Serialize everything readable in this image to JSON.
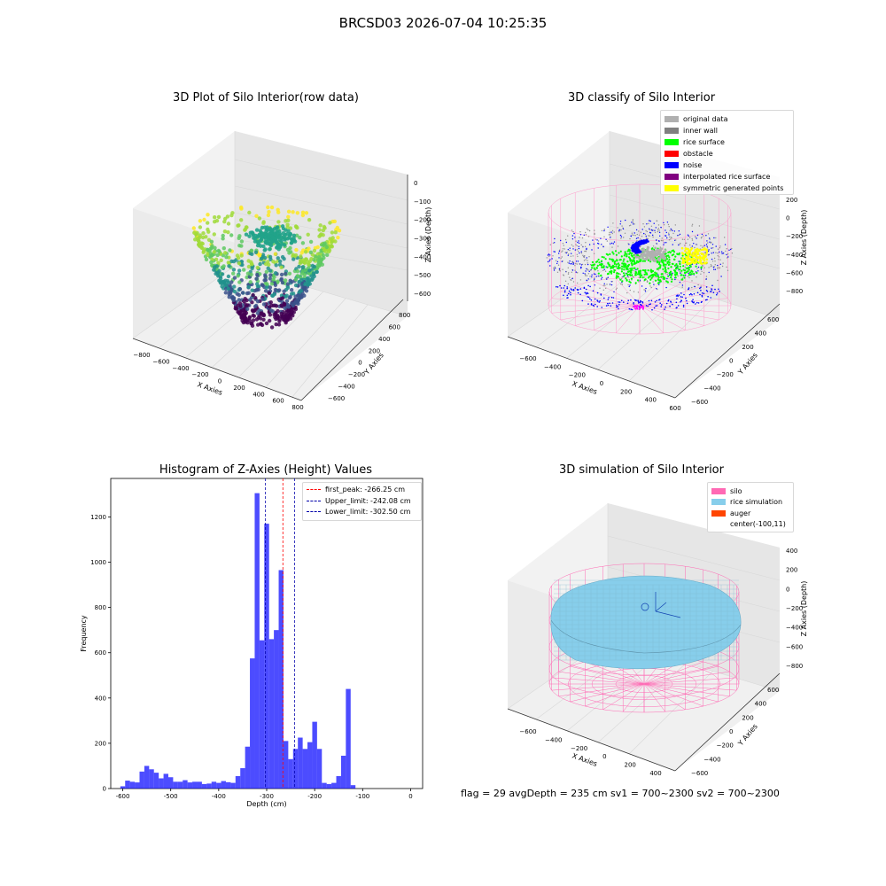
{
  "suptitle": "BRCSD03 2026-07-04 10:25:35",
  "footer": "flag = 29  avgDepth = 235 cm  sv1 = 700~2300  sv2 = 700~2300",
  "panels": {
    "raw": {
      "title": "3D Plot of Silo Interior(row data)",
      "xlabel": "X Axies",
      "ylabel": "Y Axies",
      "zlabel": "Z Axies (Depth)",
      "xticks": [
        "−800",
        "−600",
        "−400",
        "−200",
        "0",
        "200",
        "400",
        "600",
        "800"
      ],
      "yticks": [
        "−600",
        "−400",
        "−200",
        "0",
        "200",
        "400",
        "600",
        "800"
      ],
      "zticks": [
        "0",
        "−100",
        "−200",
        "−300",
        "−400",
        "−500",
        "−600"
      ]
    },
    "classify": {
      "title": "3D classify of Silo Interior",
      "xlabel": "X Axies",
      "ylabel": "Y Axies",
      "zlabel": "Z Axies (Depth)",
      "xticks": [
        "−600",
        "−400",
        "−200",
        "0",
        "200",
        "400",
        "600"
      ],
      "yticks": [
        "−600",
        "−400",
        "−200",
        "0",
        "200",
        "400",
        "600"
      ],
      "zticks": [
        "200",
        "0",
        "−200",
        "−400",
        "−600",
        "−800"
      ],
      "legend": [
        {
          "label": "original data",
          "color": "#b0b0b0"
        },
        {
          "label": "inner wall",
          "color": "#808080"
        },
        {
          "label": "rice surface",
          "color": "#00ff00"
        },
        {
          "label": "obstacle",
          "color": "#ff0000"
        },
        {
          "label": "noise",
          "color": "#0000ff"
        },
        {
          "label": "interpolated rice surface",
          "color": "#800080"
        },
        {
          "label": "symmetric generated points",
          "color": "#ffff00"
        }
      ]
    },
    "simulation": {
      "title": "3D simulation of Silo Interior",
      "xlabel": "X Axies",
      "ylabel": "Y Axies",
      "zlabel": "Z Axies (Depth)",
      "xticks": [
        "−600",
        "−400",
        "−200",
        "0",
        "200",
        "400"
      ],
      "yticks": [
        "−600",
        "−400",
        "−200",
        "0",
        "200",
        "400",
        "600"
      ],
      "zticks": [
        "400",
        "200",
        "0",
        "−200",
        "−400",
        "−600",
        "−800"
      ],
      "legend": [
        {
          "label": "silo",
          "color": "#ff69b4"
        },
        {
          "label": "rice simulation",
          "color": "#87ceeb"
        },
        {
          "label": "auger",
          "color": "#ff4500"
        },
        {
          "label": "center(-100,11)",
          "color": ""
        }
      ]
    }
  },
  "chart_data": {
    "type": "bar",
    "title": "Histogram of Z-Axies (Height) Values",
    "xlabel": "Depth (cm)",
    "ylabel": "Frequency",
    "xlim": [
      -625,
      25
    ],
    "ylim": [
      0,
      1370
    ],
    "xticks": [
      -600,
      -500,
      -400,
      -300,
      -200,
      -100,
      0
    ],
    "yticks": [
      0,
      200,
      400,
      600,
      800,
      1000,
      1200
    ],
    "bar_color": "#0000ff",
    "bin_edges_start": -605,
    "bin_width": 10,
    "values": [
      10,
      35,
      30,
      27,
      75,
      100,
      85,
      70,
      45,
      65,
      50,
      30,
      30,
      37,
      27,
      30,
      30,
      20,
      22,
      30,
      25,
      33,
      28,
      25,
      55,
      90,
      185,
      575,
      1305,
      655,
      1170,
      660,
      700,
      965,
      210,
      130,
      175,
      225,
      175,
      205,
      295,
      175,
      25,
      20,
      25,
      55,
      145,
      440,
      15
    ],
    "lines": [
      {
        "label": "first_peak: -266.25 cm",
        "x": -266.25,
        "color": "#ff0000"
      },
      {
        "label": "Upper_limit: -242.08 cm",
        "x": -242.08,
        "color": "#0000aa"
      },
      {
        "label": "Lower_limit: -302.50 cm",
        "x": -302.5,
        "color": "#0000aa"
      }
    ]
  }
}
